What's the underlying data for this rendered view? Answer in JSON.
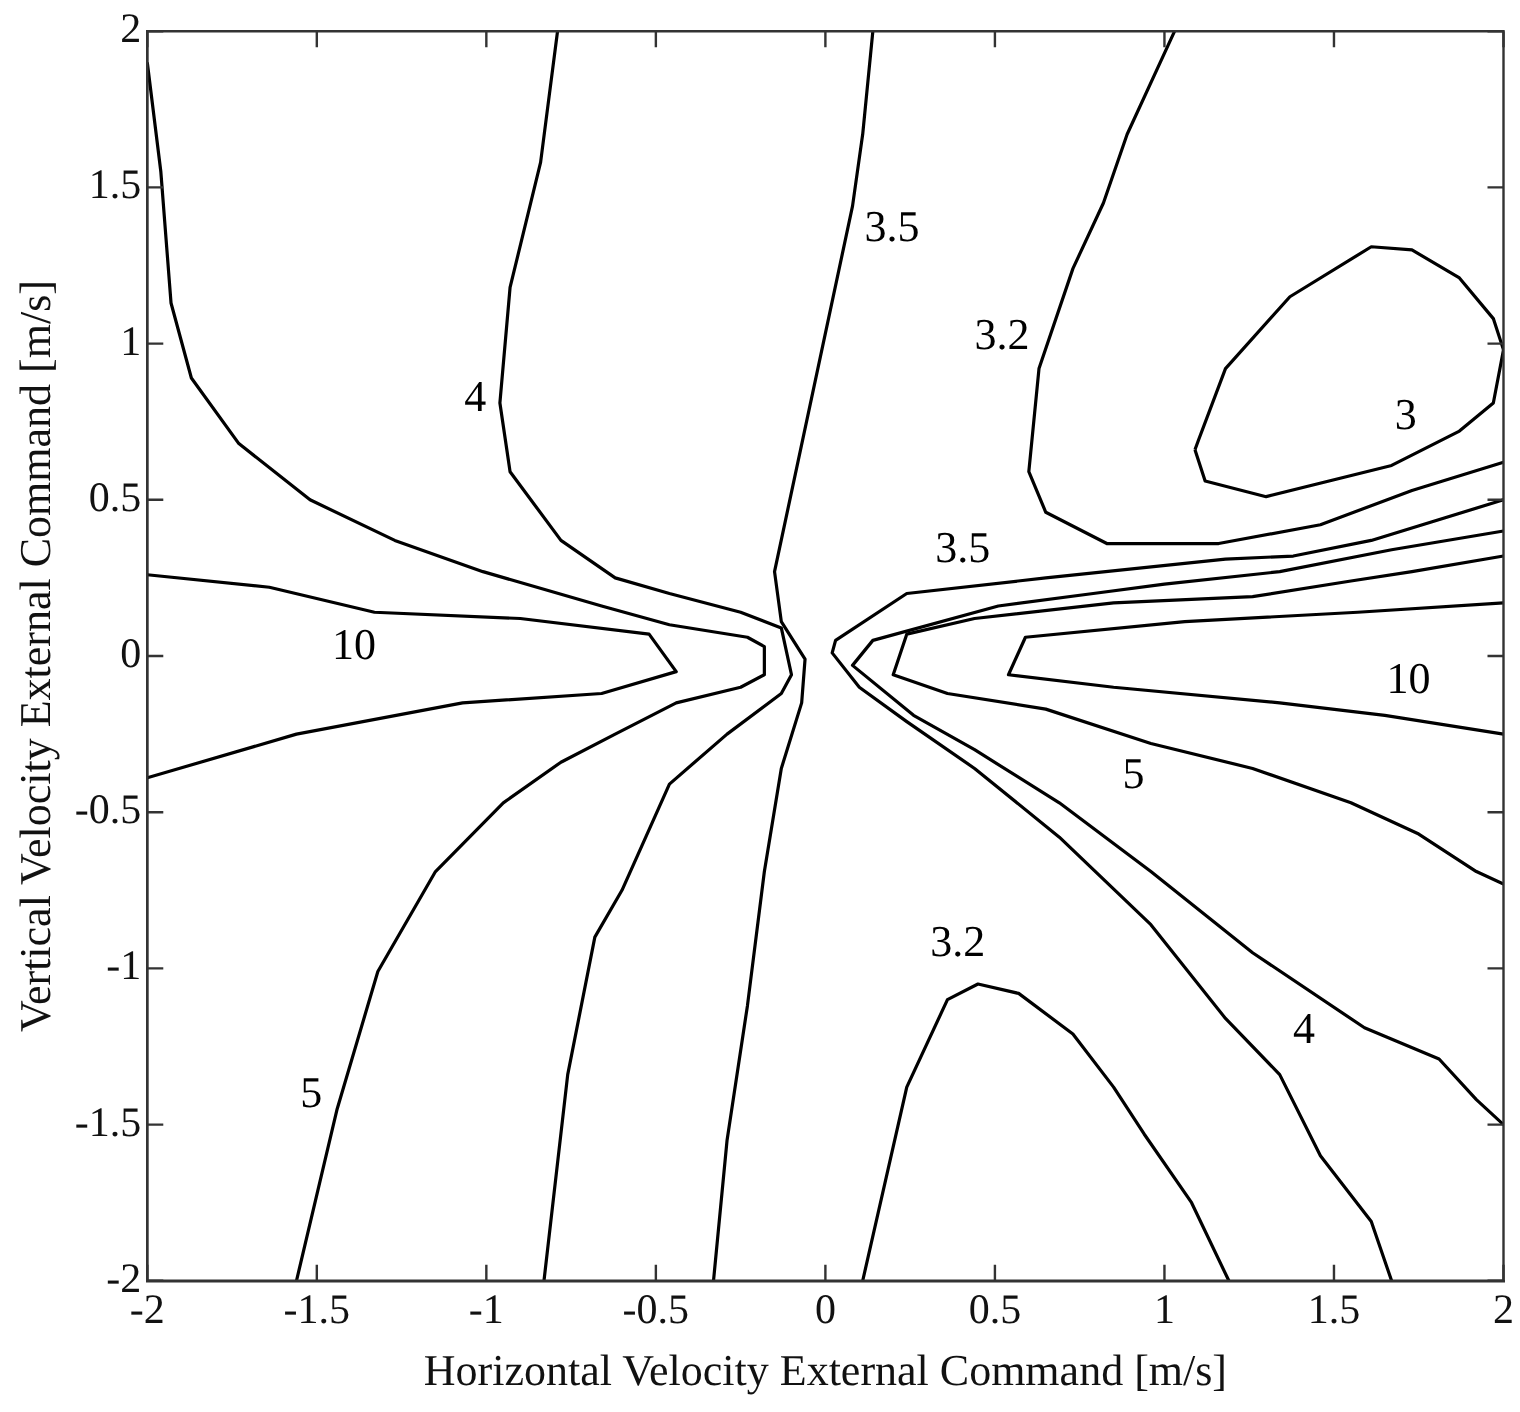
{
  "chart_data": {
    "type": "line",
    "xlabel": "Horizontal Velocity External Command [m/s]",
    "ylabel": "Vertical Velocity External Command [m/s]",
    "xlim": [
      -2,
      2
    ],
    "xticks": [
      -2,
      -1.5,
      -1,
      -0.5,
      0,
      0.5,
      1,
      1.5,
      2
    ],
    "ylim": [
      -2,
      2
    ],
    "yticks": [
      -2,
      -1.5,
      -1,
      -0.5,
      0,
      0.5,
      1,
      1.5,
      2
    ],
    "grid": false,
    "legend": false,
    "marker": "none",
    "line_style": "solid",
    "series": [
      {
        "name": "10",
        "color": "#000000",
        "x": [
          -2,
          -1.64,
          -1.33,
          -0.9,
          -0.52,
          -0.44,
          -0.66,
          -1.07,
          -1.56,
          -2
        ],
        "values": [
          0.26,
          0.22,
          0.14,
          0.12,
          0.07,
          -0.05,
          -0.12,
          -0.15,
          -0.25,
          -0.39
        ]
      },
      {
        "name": "5",
        "color": "#000000",
        "x": [
          -2,
          -1.96,
          -1.93,
          -1.87,
          -1.73,
          -1.52,
          -1.27,
          -1.01,
          -0.66,
          -0.46,
          -0.23,
          -0.18,
          -0.18,
          -0.25,
          -0.44,
          -0.62,
          -0.78,
          -0.95,
          -1.15,
          -1.32,
          -1.44,
          -1.56
        ],
        "values": [
          1.9,
          1.55,
          1.13,
          0.89,
          0.68,
          0.5,
          0.37,
          0.27,
          0.16,
          0.1,
          0.06,
          0.03,
          -0.06,
          -0.1,
          -0.15,
          -0.25,
          -0.34,
          -0.47,
          -0.69,
          -1.01,
          -1.45,
          -2
        ]
      },
      {
        "name": "4",
        "color": "#000000",
        "x": [
          -0.79,
          -0.84,
          -0.93,
          -0.96,
          -0.93,
          -0.78,
          -0.62,
          -0.46,
          -0.25,
          -0.13,
          -0.1,
          -0.13,
          -0.29,
          -0.46,
          -0.6,
          -0.68,
          -0.76,
          -0.83
        ],
        "values": [
          2,
          1.58,
          1.18,
          0.81,
          0.59,
          0.37,
          0.25,
          0.2,
          0.14,
          0.09,
          -0.06,
          -0.12,
          -0.25,
          -0.41,
          -0.75,
          -0.9,
          -1.34,
          -2
        ]
      },
      {
        "name": "3.5",
        "color": "#000000",
        "x": [
          0.14,
          0.11,
          0.08,
          -0.15,
          -0.13,
          -0.06,
          -0.07,
          -0.13,
          -0.18,
          -0.23,
          -0.29,
          -0.33
        ],
        "values": [
          2,
          1.67,
          1.44,
          0.27,
          0.11,
          -0.01,
          -0.15,
          -0.36,
          -0.69,
          -1.12,
          -1.55,
          -2
        ]
      },
      {
        "name": "3.5",
        "color": "#000000",
        "x": [
          2,
          1.61,
          1.38,
          1.18,
          0.65,
          0.24,
          0.03,
          0.02,
          0.1,
          0.24,
          0.44,
          0.69,
          0.96,
          1.18,
          1.34,
          1.46,
          1.61,
          1.67
        ],
        "values": [
          0.5,
          0.37,
          0.32,
          0.31,
          0.25,
          0.2,
          0.05,
          0.01,
          -0.1,
          -0.21,
          -0.36,
          -0.58,
          -0.86,
          -1.16,
          -1.34,
          -1.6,
          -1.81,
          -2
        ]
      },
      {
        "name": "4",
        "color": "#000000",
        "x": [
          2,
          1.67,
          1.34,
          1,
          0.79,
          0.51,
          0.14,
          0.08,
          0.26,
          0.44,
          0.69,
          0.96,
          1.26,
          1.59,
          1.81,
          1.92,
          2
        ],
        "values": [
          0.4,
          0.34,
          0.27,
          0.23,
          0.2,
          0.16,
          0.05,
          -0.03,
          -0.19,
          -0.3,
          -0.47,
          -0.69,
          -0.95,
          -1.19,
          -1.29,
          -1.42,
          -1.5
        ]
      },
      {
        "name": "5",
        "color": "#000000",
        "x": [
          2,
          1.73,
          1.55,
          1.26,
          0.85,
          0.44,
          0.24,
          0.2,
          0.36,
          0.65,
          0.96,
          1.26,
          1.55,
          1.75,
          1.92,
          2
        ],
        "values": [
          0.32,
          0.27,
          0.24,
          0.19,
          0.17,
          0.12,
          0.07,
          -0.06,
          -0.12,
          -0.17,
          -0.28,
          -0.36,
          -0.47,
          -0.57,
          -0.69,
          -0.73
        ]
      },
      {
        "name": "10",
        "color": "#000000",
        "x": [
          2,
          1.57,
          1.06,
          0.59,
          0.54,
          0.85,
          1.34,
          1.65,
          2
        ],
        "values": [
          0.17,
          0.14,
          0.11,
          0.06,
          -0.06,
          -0.1,
          -0.15,
          -0.19,
          -0.25
        ]
      },
      {
        "name": "3.2",
        "color": "#000000",
        "x": [
          1.03,
          0.89,
          0.82,
          0.73,
          0.63,
          0.6,
          0.65,
          0.83,
          1.16,
          1.46,
          1.73,
          2
        ],
        "values": [
          2,
          1.67,
          1.45,
          1.24,
          0.92,
          0.59,
          0.46,
          0.36,
          0.36,
          0.42,
          0.53,
          0.62
        ]
      },
      {
        "name": "3.2",
        "color": "#000000",
        "x": [
          0.11,
          0.24,
          0.36,
          0.45,
          0.57,
          0.73,
          0.85,
          0.94,
          1.08,
          1.19
        ],
        "values": [
          -2,
          -1.38,
          -1.1,
          -1.05,
          -1.08,
          -1.21,
          -1.38,
          -1.53,
          -1.75,
          -2
        ]
      },
      {
        "color": "#000000",
        "x": [
          1.09,
          1.1,
          1.18,
          1.37,
          1.61,
          1.73,
          1.87,
          1.97,
          2
        ],
        "values": [
          0.66,
          0.69,
          0.92,
          1.15,
          1.31,
          1.3,
          1.21,
          1.08,
          0.98
        ]
      },
      {
        "name": "3",
        "color": "#000000",
        "x": [
          1.09,
          1.12,
          1.3,
          1.67,
          1.87,
          1.97,
          2
        ],
        "values": [
          0.66,
          0.56,
          0.51,
          0.61,
          0.72,
          0.81,
          0.98
        ]
      }
    ]
  }
}
